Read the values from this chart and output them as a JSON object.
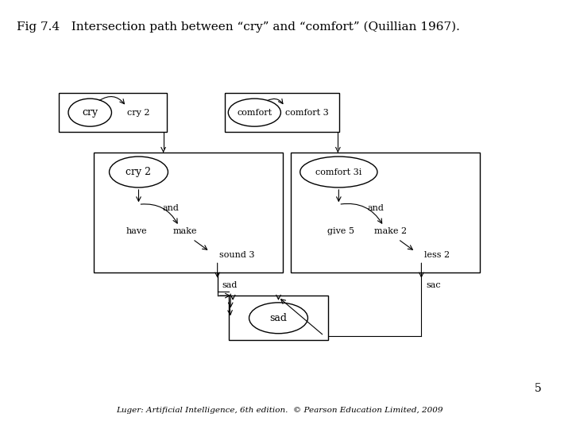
{
  "title": "Fig 7.4   Intersection path between “cry” and “comfort” (Quillian 1967).",
  "footer": "Luger: Artificial Intelligence, 6th edition.  © Pearson Education Limited, 2009",
  "page_num": "5",
  "bg_color": "#ffffff"
}
